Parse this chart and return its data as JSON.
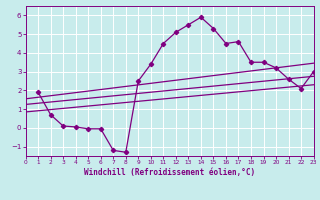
{
  "xlabel": "Windchill (Refroidissement éolien,°C)",
  "bg_color": "#c8ecec",
  "line_color": "#800080",
  "grid_color": "#ffffff",
  "xlim": [
    0,
    23
  ],
  "ylim": [
    -1.5,
    6.5
  ],
  "xticks": [
    0,
    1,
    2,
    3,
    4,
    5,
    6,
    7,
    8,
    9,
    10,
    11,
    12,
    13,
    14,
    15,
    16,
    17,
    18,
    19,
    20,
    21,
    22,
    23
  ],
  "yticks": [
    -1,
    0,
    1,
    2,
    3,
    4,
    5,
    6
  ],
  "curve_x": [
    1,
    2,
    3,
    4,
    5,
    6,
    7,
    8,
    9,
    10,
    11,
    12,
    13,
    14,
    15,
    16,
    17,
    18,
    19,
    20,
    21,
    22,
    23
  ],
  "curve_y": [
    1.9,
    0.7,
    0.1,
    0.05,
    -0.05,
    -0.05,
    -1.2,
    -1.3,
    2.5,
    3.4,
    4.5,
    5.1,
    5.5,
    5.9,
    5.3,
    4.5,
    4.6,
    3.5,
    3.5,
    3.2,
    2.6,
    2.1,
    3.0
  ],
  "line1_x": [
    0,
    23
  ],
  "line1_y": [
    1.55,
    3.45
  ],
  "line2_x": [
    0,
    23
  ],
  "line2_y": [
    1.25,
    2.75
  ],
  "line3_x": [
    0,
    23
  ],
  "line3_y": [
    0.85,
    2.3
  ]
}
